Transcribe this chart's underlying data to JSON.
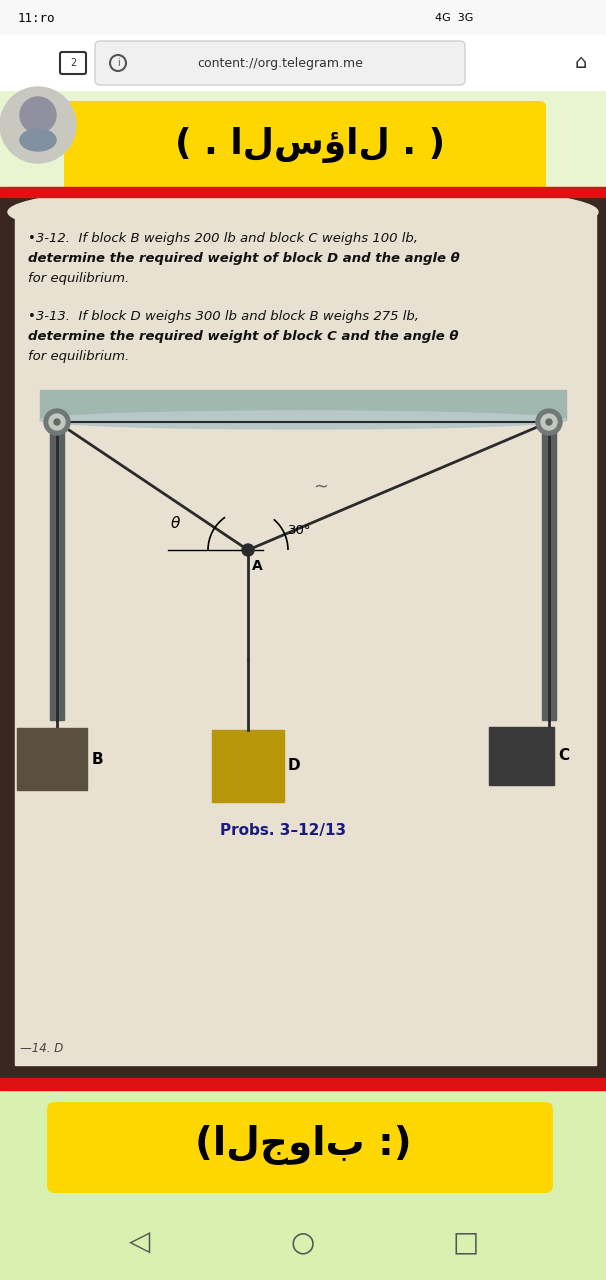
{
  "status_bar_text": "11:ro",
  "url_text": "content://org.telegram.me",
  "arabic_top": "( . السؤال . )",
  "problem_312_line1": "•3-12.  If block B weighs 200 lb and block C weighs 100 lb,",
  "problem_312_line2": "determine the required weight of block D and the angle θ",
  "problem_312_line3": "for equilibrium.",
  "problem_313_line1": "•3-13.  If block D weighs 300 lb and block B weighs 275 lb,",
  "problem_313_line2": "determine the required weight of block C and the angle θ",
  "problem_313_line3": "for equilibrium.",
  "caption_text": "Probs. 3–12/13",
  "arabic_bottom": "(الجواب :)",
  "block_B_color": "#5a5040",
  "block_D_color": "#b8960a",
  "block_C_color": "#3a3a3a",
  "rope_color": "#2a2a2a",
  "support_color": "#5a6060",
  "ceiling_color": "#a0b8b0",
  "yellow_highlight_color": "#FFD700",
  "phone_bg": "#ffffff",
  "top_greenish": "#e8f5d0",
  "book_bg": "#d8cfc0",
  "book_page_bg": "#e8e0d0",
  "red_stripe": "#dd1111",
  "bottom_green": "#d8f0b0"
}
